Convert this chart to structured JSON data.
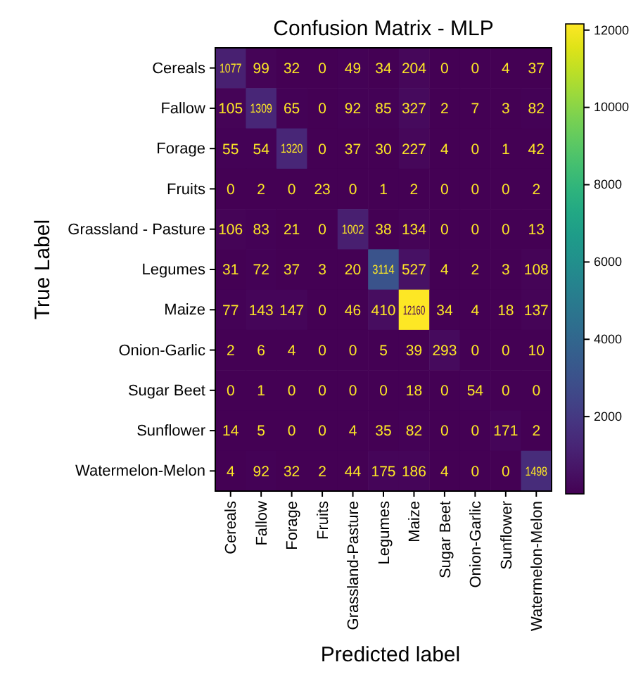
{
  "chart_data": {
    "type": "heatmap",
    "title": "Confusion Matrix - MLP",
    "xlabel": "Predicted label",
    "ylabel": "True Label",
    "categories": [
      "Cereals",
      "Fallow",
      "Forage",
      "Fruits",
      "Grassland-Pasture",
      "Legumes",
      "Maize",
      "Sugar Beet",
      "Onion-Garlic",
      "Sunflower",
      "Watermelon-Melon"
    ],
    "y_categories": [
      "Cereals",
      "Fallow",
      "Forage",
      "Fruits",
      "Grassland - Pasture",
      "Legumes",
      "Maize",
      "Onion-Garlic",
      "Sugar Beet",
      "Sunflower",
      "Watermelon-Melon"
    ],
    "cells": [
      [
        1077,
        99,
        32,
        0,
        49,
        34,
        204,
        0,
        0,
        4,
        37
      ],
      [
        105,
        1309,
        65,
        0,
        92,
        85,
        327,
        2,
        7,
        3,
        82
      ],
      [
        55,
        54,
        1320,
        0,
        37,
        30,
        227,
        4,
        0,
        1,
        42
      ],
      [
        0,
        2,
        0,
        23,
        0,
        1,
        2,
        0,
        0,
        0,
        2
      ],
      [
        106,
        83,
        21,
        0,
        1002,
        38,
        134,
        0,
        0,
        0,
        13
      ],
      [
        31,
        72,
        37,
        3,
        20,
        3114,
        527,
        4,
        2,
        3,
        108
      ],
      [
        77,
        143,
        147,
        0,
        46,
        410,
        12160,
        34,
        4,
        18,
        137
      ],
      [
        2,
        6,
        4,
        0,
        0,
        5,
        39,
        293,
        0,
        0,
        10
      ],
      [
        0,
        1,
        0,
        0,
        0,
        0,
        18,
        0,
        54,
        0,
        0
      ],
      [
        14,
        5,
        0,
        0,
        4,
        35,
        82,
        0,
        0,
        171,
        2
      ],
      [
        4,
        92,
        32,
        2,
        44,
        175,
        186,
        4,
        0,
        0,
        1498
      ]
    ],
    "data_labels": true,
    "clim": [
      0,
      12160
    ],
    "cticks": [
      2000,
      4000,
      6000,
      8000,
      10000,
      12000
    ]
  }
}
